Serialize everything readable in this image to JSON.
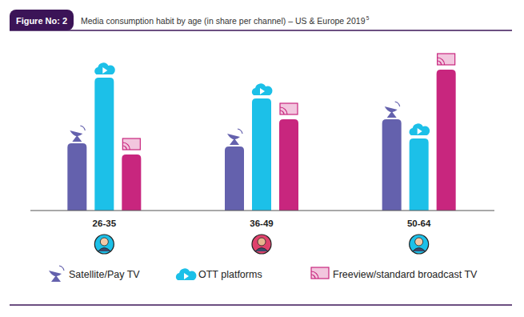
{
  "chart_data": {
    "type": "bar",
    "figure_label": "Figure No: 2",
    "title": "Media consumption habit by age (in share per channel) – US & Europe 2019",
    "footnote_ref": "5",
    "categories": [
      "26-35",
      "36-49",
      "50-64"
    ],
    "series": [
      {
        "name": "Satellite/Pay TV",
        "color": "#6461ad",
        "values": [
          42,
          40,
          57
        ]
      },
      {
        "name": "OTT platforms",
        "color": "#1cc0e8",
        "values": [
          83,
          70,
          45
        ]
      },
      {
        "name": "Freeview/standard broadcast TV",
        "color": "#c8267e",
        "values": [
          35,
          57,
          88
        ]
      }
    ],
    "ylim": [
      0,
      100
    ],
    "tick_labels": "x",
    "grid": false,
    "legend": "bottom"
  }
}
